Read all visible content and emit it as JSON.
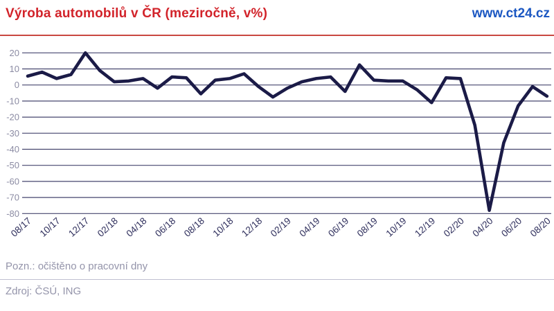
{
  "header": {
    "title": "Výroba automobilů v ČR (meziročně, v%)",
    "url": "www.ct24.cz"
  },
  "footer": {
    "note": "Pozn.: očištěno o pracovní dny",
    "source": "Zdroj: ČSÚ, ING"
  },
  "colors": {
    "title_red": "#d2232a",
    "url_blue": "#1b57c2",
    "rule_red": "#c94740",
    "line_navy": "#1b1b47",
    "grid_navy": "#45456e",
    "ytick_grey": "#8b8ba3",
    "xtick_navy": "#2e2e5c",
    "footer_grey": "#9494aa",
    "divider_grey": "#bfbfd0"
  },
  "chart_data": {
    "type": "line",
    "title": "Výroba automobilů v ČR (meziročně, v%)",
    "x": [
      "08/17",
      "09/17",
      "10/17",
      "11/17",
      "12/17",
      "01/18",
      "02/18",
      "03/18",
      "04/18",
      "05/18",
      "06/18",
      "07/18",
      "08/18",
      "09/18",
      "10/18",
      "11/18",
      "12/18",
      "01/19",
      "02/19",
      "03/19",
      "04/19",
      "05/19",
      "06/19",
      "07/19",
      "08/19",
      "09/19",
      "10/19",
      "11/19",
      "12/19",
      "01/20",
      "02/20",
      "03/20",
      "04/20",
      "05/20",
      "06/20",
      "07/20",
      "08/20"
    ],
    "values": [
      5.5,
      8,
      4,
      6.5,
      20,
      9,
      2,
      2.5,
      4,
      -2,
      5,
      4.5,
      -5.5,
      3,
      4,
      7,
      -1,
      -7.5,
      -2,
      2,
      4,
      5,
      -4,
      12.5,
      3,
      2.5,
      2.5,
      -3,
      -11,
      4.5,
      4,
      -25,
      -78,
      -36,
      -13,
      -1,
      -7
    ],
    "x_tick_labels": [
      "08/17",
      "10/17",
      "12/17",
      "02/18",
      "04/18",
      "06/18",
      "08/18",
      "10/18",
      "12/18",
      "02/19",
      "04/19",
      "06/19",
      "08/19",
      "10/19",
      "12/19",
      "02/20",
      "04/20",
      "06/20",
      "08/20"
    ],
    "yticks": [
      20,
      10,
      0,
      -10,
      -20,
      -30,
      -40,
      -50,
      -60,
      -70,
      -80
    ],
    "ylim": [
      -80,
      20
    ],
    "grid": true,
    "legend": false,
    "xlabel": "",
    "ylabel": ""
  }
}
